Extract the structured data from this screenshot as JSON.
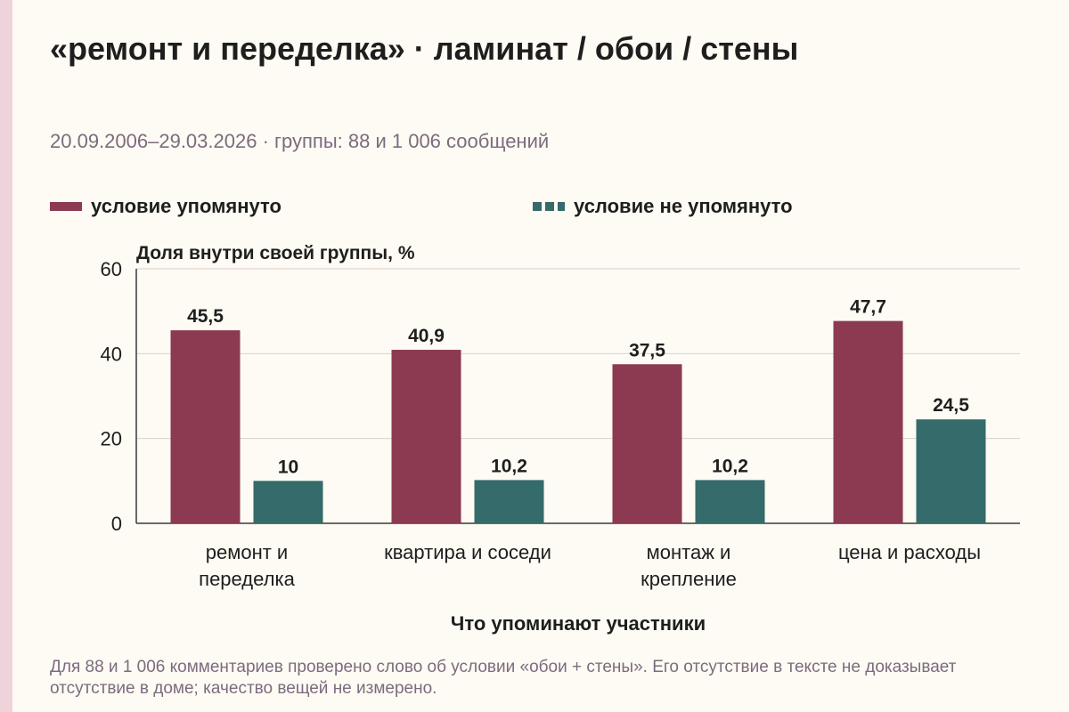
{
  "title": "«ремонт и переделка» · ламинат / обои / стены",
  "subtitle": "20.09.2006–29.03.2026 · группы: 88 и 1 006 сообщений",
  "footnote": "Для 88 и 1 006 комментариев проверено слово об условии «обои + стены». Его отсутствие в тексте не доказывает отсутствие в доме; качество вещей не измерено.",
  "colors": {
    "mentioned": "#8b3a52",
    "not_mentioned": "#356b6a",
    "grid": "#d7d2cc",
    "axis": "#3a3a3a",
    "text": "#1e1e1e"
  },
  "chart_data": {
    "type": "bar",
    "ylabel": "Доля внутри своей группы, %",
    "xlabel": "Что упоминают участники",
    "ylim": [
      0,
      60
    ],
    "yticks": [
      0,
      20,
      40,
      60
    ],
    "grid": true,
    "legend_placement": "top",
    "categories": [
      [
        "ремонт и",
        "переделка"
      ],
      [
        "квартира и соседи"
      ],
      [
        "монтаж и",
        "крепление"
      ],
      [
        "цена и расходы"
      ]
    ],
    "series": [
      {
        "name": "условие упомянуто",
        "values": [
          45.5,
          40.9,
          37.5,
          47.7
        ],
        "labels": [
          "45,5",
          "40,9",
          "37,5",
          "47,7"
        ]
      },
      {
        "name": "условие не упомянуто",
        "values": [
          10,
          10.2,
          10.2,
          24.5
        ],
        "labels": [
          "10",
          "10,2",
          "10,2",
          "24,5"
        ]
      }
    ]
  }
}
